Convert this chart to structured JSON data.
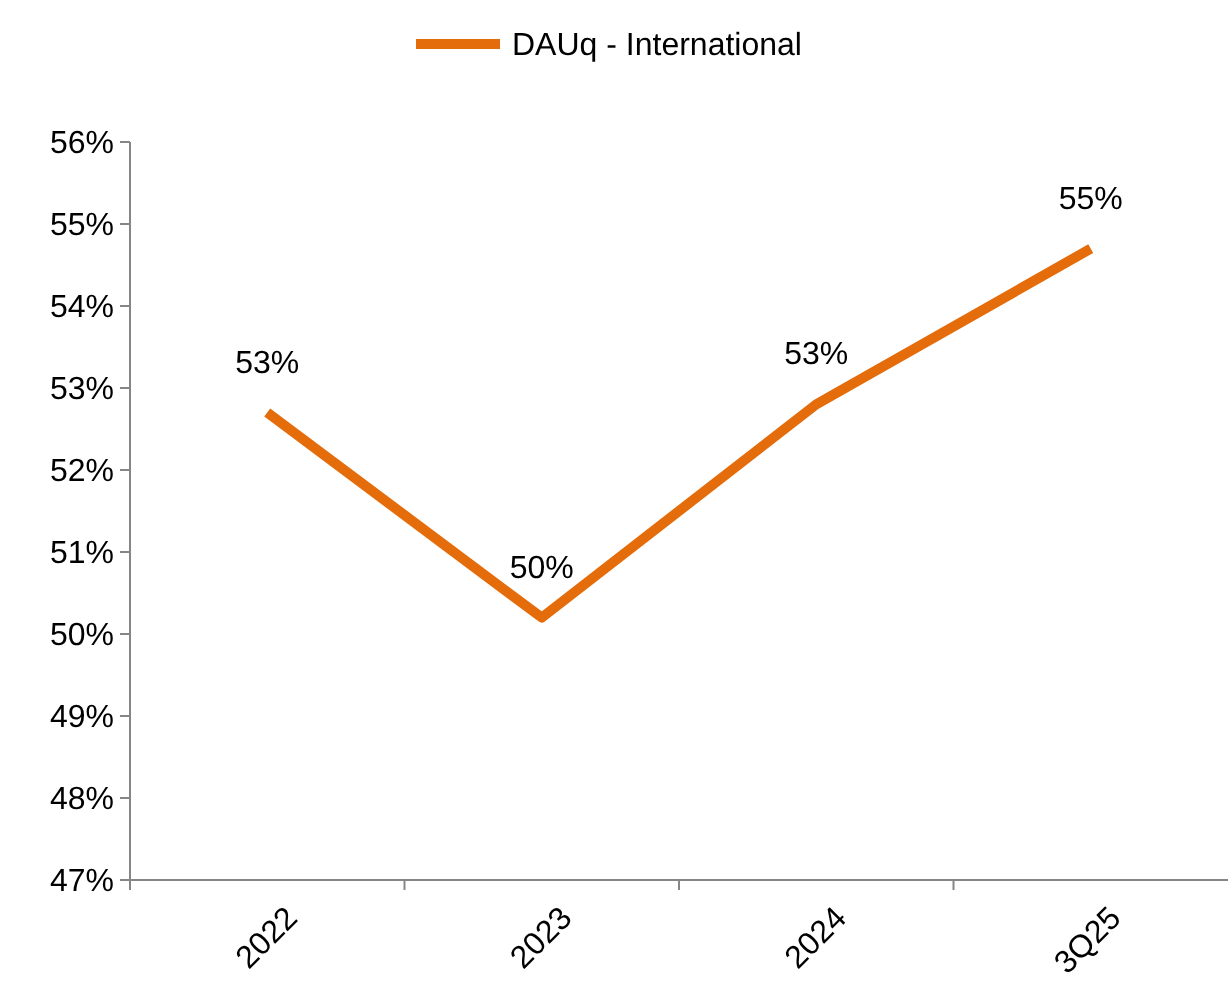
{
  "chart_data": {
    "type": "line",
    "categories": [
      "2022",
      "2023",
      "2024",
      "3Q25"
    ],
    "series": [
      {
        "name": "DAUq - International",
        "color": "#e46c0a",
        "values": [
          52.7,
          50.2,
          52.8,
          54.7
        ],
        "value_labels": [
          "53%",
          "50%",
          "53%",
          "55%"
        ]
      }
    ],
    "ylim": [
      47,
      56
    ],
    "yticks": [
      {
        "value": 47,
        "label": "47%"
      },
      {
        "value": 48,
        "label": "48%"
      },
      {
        "value": 49,
        "label": "49%"
      },
      {
        "value": 50,
        "label": "50%"
      },
      {
        "value": 51,
        "label": "51%"
      },
      {
        "value": 52,
        "label": "52%"
      },
      {
        "value": 53,
        "label": "53%"
      },
      {
        "value": 54,
        "label": "54%"
      },
      {
        "value": 55,
        "label": "55%"
      },
      {
        "value": 56,
        "label": "56%"
      }
    ],
    "legend": "top",
    "grid": false,
    "marker": "none",
    "line_style": "solid"
  }
}
